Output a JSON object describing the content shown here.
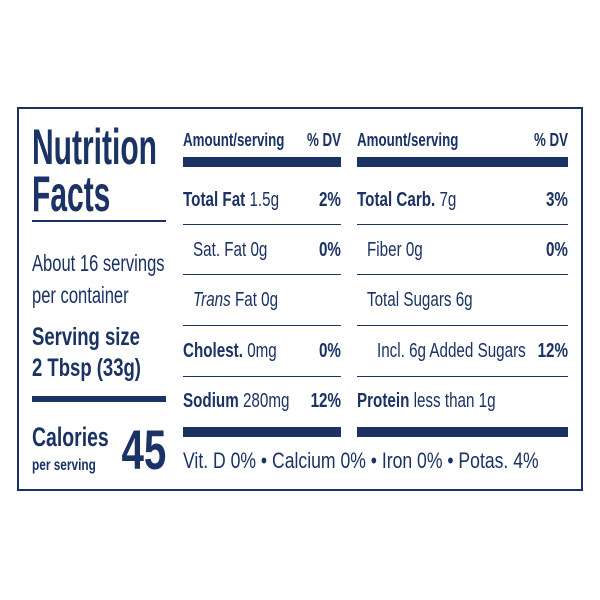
{
  "title_lines": [
    "Nutrition",
    "Facts"
  ],
  "servings": [
    "About 16 servings",
    "per container"
  ],
  "serving_size": {
    "label": "Serving size",
    "value": "2 Tbsp (33g)"
  },
  "calories": {
    "label": "Calories",
    "sublabel": "per serving",
    "value": "45"
  },
  "columns": [
    {
      "header": {
        "amount": "Amount/serving",
        "dv": "% DV"
      },
      "rows": [
        {
          "name": "Total Fat",
          "amount": "1.5g",
          "dv": "2%"
        },
        {
          "name": "Sat. Fat 0g",
          "dv": "0%"
        },
        {
          "name": "Trans",
          "amount": "Fat 0g"
        },
        {
          "name": "Cholest.",
          "amount": "0mg",
          "dv": "0%"
        },
        {
          "name": "Sodium",
          "amount": "280mg",
          "dv": "12%"
        }
      ]
    },
    {
      "header": {
        "amount": "Amount/serving",
        "dv": "% DV"
      },
      "rows": [
        {
          "name": "Total Carb.",
          "amount": "7g",
          "dv": "3%"
        },
        {
          "name": "Fiber 0g",
          "dv": "0%"
        },
        {
          "name": "Total Sugars 6g"
        },
        {
          "name": "Incl. 6g Added Sugars",
          "dv": "12%"
        },
        {
          "name": "Protein",
          "amount": "less than 1g"
        }
      ]
    }
  ],
  "footer": "Vit. D 0% • Calcium 0% • Iron 0% • Potas. 4%"
}
